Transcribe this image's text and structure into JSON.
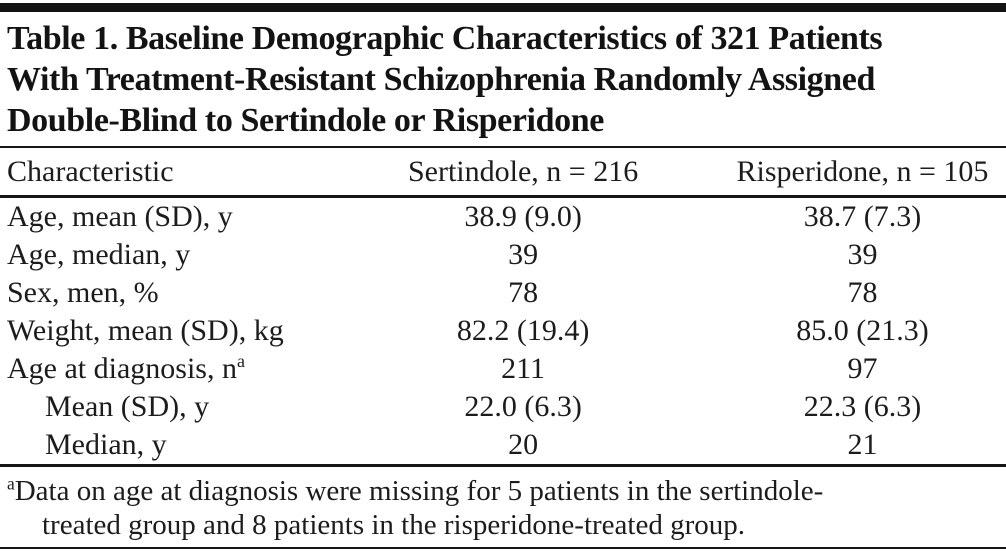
{
  "document": {
    "title_lines": [
      "Table 1. Baseline Demographic Characteristics of 321 Patients",
      "With Treatment-Resistant Schizophrenia Randomly Assigned",
      "Double-Blind to Sertindole or Risperidone"
    ],
    "columns": {
      "characteristic": "Characteristic",
      "sertindole": "Sertindole, n = 216",
      "risperidone": "Risperidone, n = 105"
    },
    "rows": [
      {
        "label": "Age, mean (SD), y",
        "sup": "",
        "indent": false,
        "sertindole": "38.9 (9.0)",
        "risperidone": "38.7 (7.3)"
      },
      {
        "label": "Age, median, y",
        "sup": "",
        "indent": false,
        "sertindole": "39",
        "risperidone": "39"
      },
      {
        "label": "Sex, men, %",
        "sup": "",
        "indent": false,
        "sertindole": "78",
        "risperidone": "78"
      },
      {
        "label": "Weight, mean (SD), kg",
        "sup": "",
        "indent": false,
        "sertindole": "82.2 (19.4)",
        "risperidone": "85.0 (21.3)"
      },
      {
        "label": "Age at diagnosis, n",
        "sup": "a",
        "indent": false,
        "sertindole": "211",
        "risperidone": "97"
      },
      {
        "label": "Mean (SD), y",
        "sup": "",
        "indent": true,
        "sertindole": "22.0 (6.3)",
        "risperidone": "22.3 (6.3)"
      },
      {
        "label": "Median, y",
        "sup": "",
        "indent": true,
        "sertindole": "20",
        "risperidone": "21"
      }
    ],
    "footnote": {
      "marker": "a",
      "lines": [
        "Data on age at diagnosis were missing for 5 patients in the sertindole-",
        "treated group and 8 patients in the risperidone-treated group."
      ]
    },
    "colors": {
      "text": "#1c1c1c",
      "rule": "#161616",
      "background": "#ffffff"
    }
  }
}
